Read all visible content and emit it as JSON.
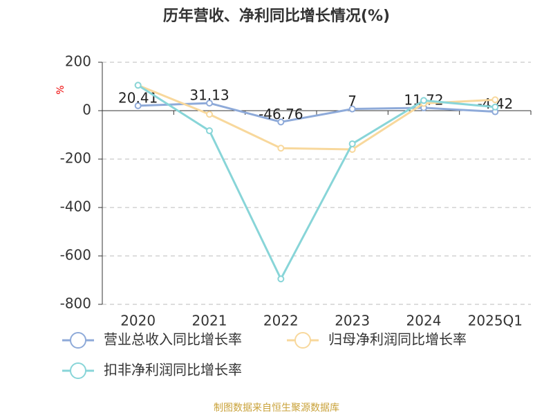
{
  "chart_data": {
    "type": "line",
    "title": "历年营收、净利同比增长情况(%)",
    "y_label": "%",
    "categories": [
      "2020",
      "2021",
      "2022",
      "2023",
      "2024",
      "2025Q1"
    ],
    "series": [
      {
        "name": "营业总收入同比增长率",
        "color": "#8eaad9",
        "values": [
          20.41,
          31.13,
          -46.76,
          7,
          11.72,
          -4.42
        ],
        "show_labels": true
      },
      {
        "name": "归母净利润同比增长率",
        "color": "#f8d89c",
        "values": [
          105,
          -15,
          -155,
          -160,
          30,
          45
        ],
        "show_labels": false
      },
      {
        "name": "扣非净利润同比增长率",
        "color": "#88d5d8",
        "values": [
          105,
          -83,
          -695,
          -137,
          42,
          15
        ],
        "show_labels": false
      }
    ],
    "ylim": [
      -800,
      200
    ],
    "yticks": [
      -800,
      -600,
      -400,
      -200,
      0,
      200
    ],
    "grid": true,
    "legend": "bottom",
    "source": "制图数据来自恒生聚源数据库"
  }
}
